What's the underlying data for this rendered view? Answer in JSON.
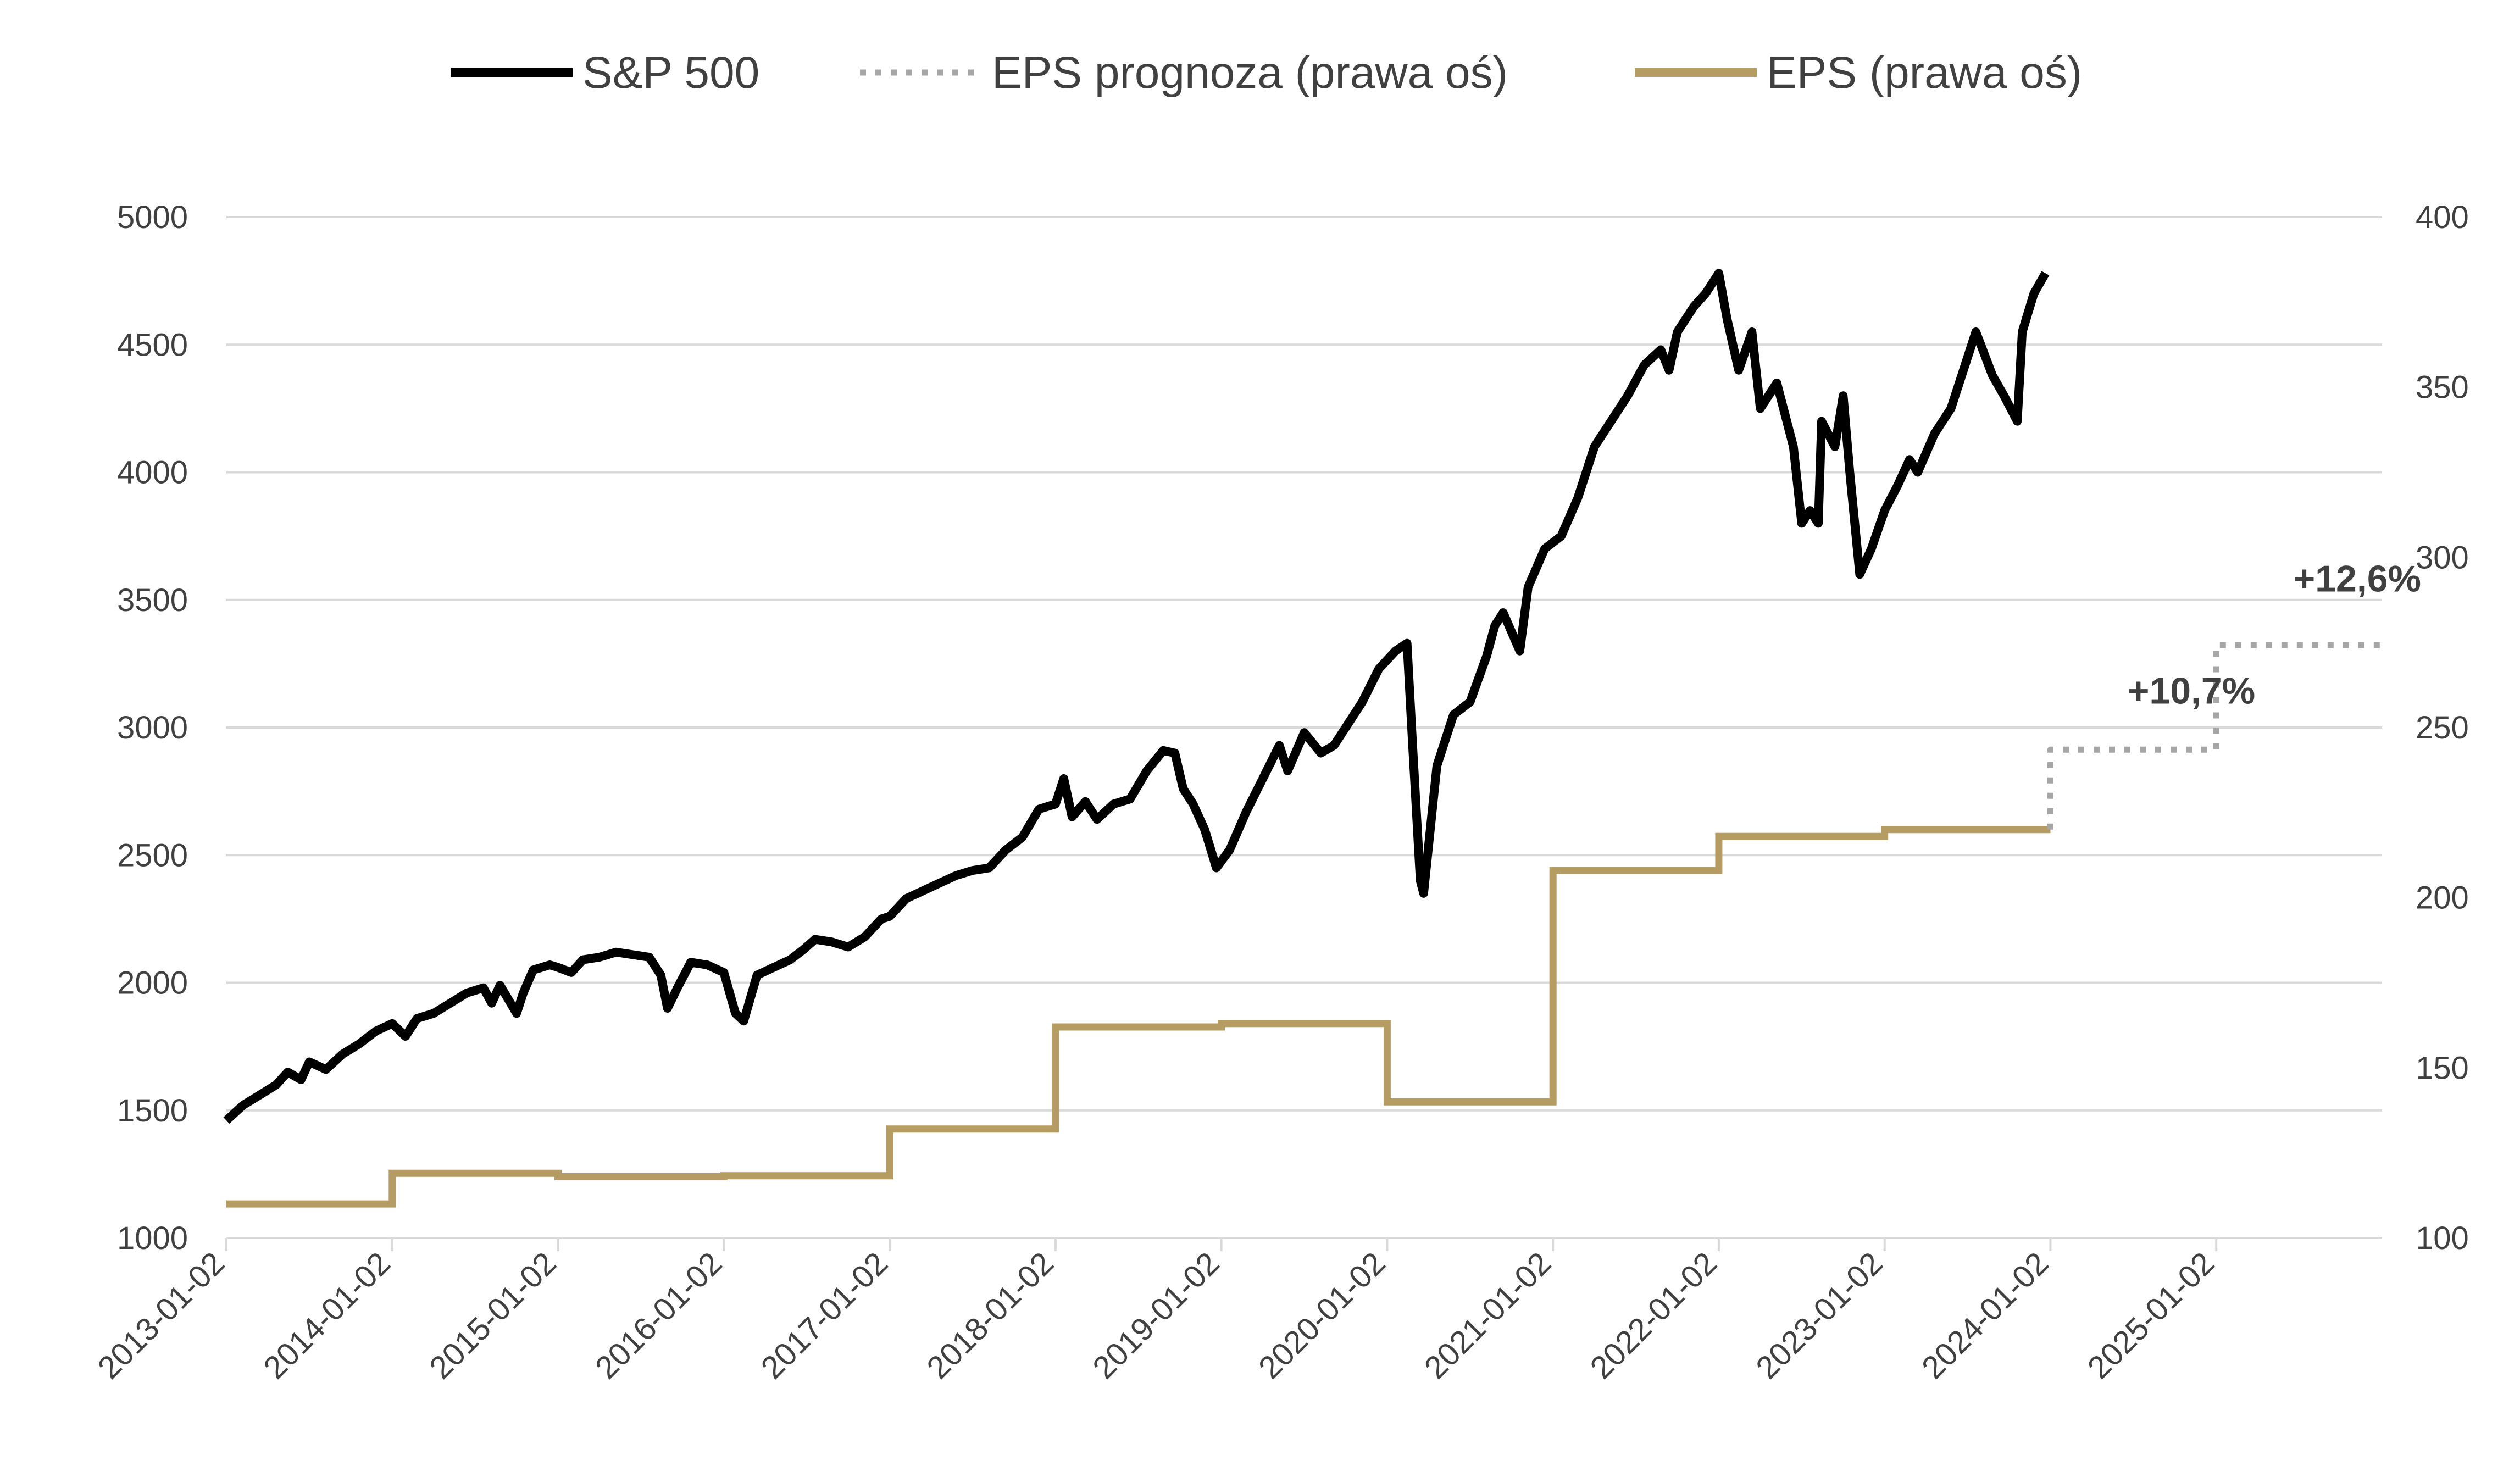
{
  "chart_data": {
    "type": "line",
    "title": "",
    "legend": [
      {
        "label": "S&P 500",
        "color": "#000000",
        "style": "solid"
      },
      {
        "label": "EPS prognoza (prawa oś)",
        "color": "#a6a6a6",
        "style": "dotted"
      },
      {
        "label": "EPS (prawa oś)",
        "color": "#b59c63",
        "style": "solid"
      }
    ],
    "legend_position": "top-center",
    "x_axis": {
      "type": "date",
      "ticks": [
        "2013-01-02",
        "2014-01-02",
        "2015-01-02",
        "2016-01-02",
        "2017-01-02",
        "2018-01-02",
        "2019-01-02",
        "2020-01-02",
        "2021-01-02",
        "2022-01-02",
        "2023-01-02",
        "2024-01-02",
        "2025-01-02"
      ],
      "range": [
        2013.0,
        2026.0
      ]
    },
    "y_left": {
      "label": "",
      "ticks": [
        "1000",
        "1500",
        "2000",
        "2500",
        "3000",
        "3500",
        "4000",
        "4500",
        "5000"
      ],
      "range": [
        1000,
        5000
      ]
    },
    "y_right": {
      "label": "",
      "ticks": [
        "100",
        "150",
        "200",
        "250",
        "300",
        "350",
        "400"
      ],
      "range": [
        100,
        400
      ]
    },
    "grid": true,
    "series": [
      {
        "name": "S&P 500",
        "axis": "left",
        "x": [
          2013.0,
          2013.1,
          2013.2,
          2013.3,
          2013.37,
          2013.45,
          2013.5,
          2013.6,
          2013.7,
          2013.8,
          2013.9,
          2014.0,
          2014.08,
          2014.15,
          2014.25,
          2014.35,
          2014.45,
          2014.55,
          2014.6,
          2014.65,
          2014.75,
          2014.79,
          2014.85,
          2014.95,
          2015.0,
          2015.08,
          2015.15,
          2015.25,
          2015.35,
          2015.45,
          2015.55,
          2015.62,
          2015.66,
          2015.72,
          2015.8,
          2015.9,
          2016.0,
          2016.07,
          2016.12,
          2016.2,
          2016.3,
          2016.4,
          2016.48,
          2016.55,
          2016.65,
          2016.75,
          2016.85,
          2016.95,
          2017.0,
          2017.1,
          2017.2,
          2017.3,
          2017.4,
          2017.5,
          2017.6,
          2017.7,
          2017.8,
          2017.9,
          2018.0,
          2018.05,
          2018.1,
          2018.18,
          2018.25,
          2018.35,
          2018.45,
          2018.55,
          2018.65,
          2018.72,
          2018.77,
          2018.83,
          2018.9,
          2018.97,
          2019.05,
          2019.15,
          2019.25,
          2019.35,
          2019.4,
          2019.5,
          2019.6,
          2019.68,
          2019.75,
          2019.85,
          2019.95,
          2020.05,
          2020.12,
          2020.15,
          2020.2,
          2020.22,
          2020.3,
          2020.4,
          2020.5,
          2020.6,
          2020.65,
          2020.7,
          2020.8,
          2020.85,
          2020.95,
          2021.05,
          2021.15,
          2021.25,
          2021.35,
          2021.45,
          2021.55,
          2021.65,
          2021.7,
          2021.75,
          2021.85,
          2021.92,
          2022.0,
          2022.05,
          2022.12,
          2022.2,
          2022.25,
          2022.35,
          2022.45,
          2022.5,
          2022.55,
          2022.6,
          2022.62,
          2022.7,
          2022.75,
          2022.79,
          2022.85,
          2022.92,
          2023.0,
          2023.08,
          2023.15,
          2023.2,
          2023.3,
          2023.4,
          2023.5,
          2023.55,
          2023.58,
          2023.65,
          2023.72,
          2023.8,
          2023.83,
          2023.9,
          2023.97
        ],
        "y": [
          1460,
          1520,
          1560,
          1600,
          1650,
          1620,
          1690,
          1660,
          1720,
          1760,
          1810,
          1840,
          1790,
          1860,
          1880,
          1920,
          1960,
          1980,
          1920,
          1990,
          1880,
          1960,
          2050,
          2070,
          2060,
          2040,
          2090,
          2100,
          2120,
          2110,
          2100,
          2030,
          1900,
          1980,
          2080,
          2070,
          2040,
          1880,
          1850,
          2030,
          2060,
          2090,
          2130,
          2170,
          2160,
          2140,
          2180,
          2250,
          2260,
          2330,
          2360,
          2390,
          2420,
          2440,
          2450,
          2520,
          2570,
          2680,
          2700,
          2800,
          2650,
          2710,
          2640,
          2700,
          2720,
          2830,
          2910,
          2900,
          2760,
          2700,
          2600,
          2450,
          2520,
          2670,
          2800,
          2930,
          2830,
          2980,
          2900,
          2930,
          3000,
          3100,
          3230,
          3300,
          3330,
          2970,
          2400,
          2350,
          2850,
          3050,
          3100,
          3280,
          3400,
          3450,
          3300,
          3550,
          3700,
          3750,
          3900,
          4100,
          4200,
          4300,
          4420,
          4480,
          4400,
          4550,
          4650,
          4700,
          4780,
          4600,
          4400,
          4550,
          4250,
          4350,
          4100,
          3800,
          3850,
          3800,
          4200,
          4100,
          4300,
          4000,
          3600,
          3700,
          3850,
          3950,
          4050,
          4000,
          4150,
          4250,
          4450,
          4550,
          4500,
          4380,
          4300,
          4200,
          4550,
          4700,
          4780
        ]
      },
      {
        "name": "EPS (prawa oś)",
        "axis": "right",
        "x": [
          2013.0,
          2014.0,
          2014.0,
          2015.0,
          2015.0,
          2016.0,
          2016.0,
          2017.0,
          2017.0,
          2018.0,
          2018.0,
          2019.0,
          2019.0,
          2020.0,
          2020.0,
          2021.0,
          2021.0,
          2022.0,
          2022.0,
          2023.0,
          2023.0,
          2024.0
        ],
        "y": [
          110,
          110,
          119,
          119,
          118,
          118,
          118.3,
          118.3,
          132,
          132,
          162,
          162,
          163,
          163,
          140,
          140,
          208,
          208,
          218,
          218,
          220,
          220
        ]
      },
      {
        "name": "EPS prognoza (prawa oś)",
        "axis": "right",
        "x": [
          2024.0,
          2024.0,
          2025.0,
          2025.0,
          2026.0
        ],
        "y": [
          220,
          243.5,
          243.5,
          274.2,
          274.2
        ]
      }
    ],
    "annotations": [
      {
        "text": "+10,7%",
        "x": 2024.85,
        "y": 257
      },
      {
        "text": "+12,6%",
        "x": 2025.85,
        "y": 290
      }
    ]
  }
}
